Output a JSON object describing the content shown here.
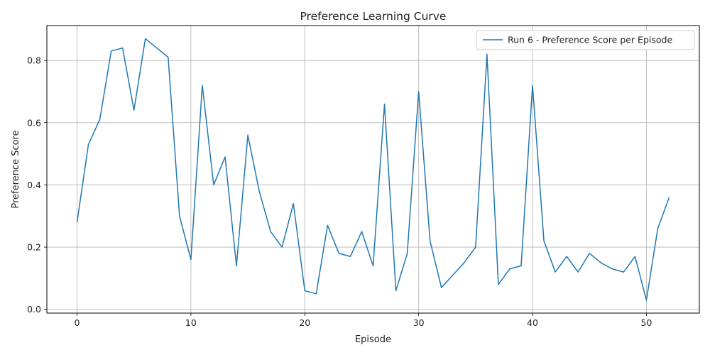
{
  "chart_data": {
    "type": "line",
    "title": "Preference Learning Curve",
    "xlabel": "Episode",
    "ylabel": "Preference Score",
    "xlim": [
      -2.65,
      54.65
    ],
    "ylim": [
      -0.012,
      0.912
    ],
    "xticks": [
      0,
      10,
      20,
      30,
      40,
      50
    ],
    "yticks": [
      0.0,
      0.2,
      0.4,
      0.6,
      0.8
    ],
    "ytick_labels": [
      "0.0",
      "0.2",
      "0.4",
      "0.6",
      "0.8"
    ],
    "grid": true,
    "legend_position": "top-right",
    "series": [
      {
        "name": "Run 6 - Preference Score per Episode",
        "color": "#1f77b4",
        "x": [
          0,
          1,
          2,
          3,
          4,
          5,
          6,
          7,
          8,
          9,
          10,
          11,
          12,
          13,
          14,
          15,
          16,
          17,
          18,
          19,
          20,
          21,
          22,
          23,
          24,
          25,
          26,
          27,
          28,
          29,
          30,
          31,
          32,
          33,
          34,
          35,
          36,
          37,
          38,
          39,
          40,
          41,
          42,
          43,
          44,
          45,
          46,
          47,
          48,
          49,
          50,
          51,
          52
        ],
        "values": [
          0.28,
          0.53,
          0.61,
          0.83,
          0.84,
          0.64,
          0.87,
          0.84,
          0.81,
          0.3,
          0.16,
          0.72,
          0.4,
          0.49,
          0.14,
          0.56,
          0.38,
          0.25,
          0.2,
          0.34,
          0.06,
          0.05,
          0.27,
          0.18,
          0.17,
          0.25,
          0.14,
          0.66,
          0.06,
          0.18,
          0.7,
          0.22,
          0.07,
          0.11,
          0.15,
          0.2,
          0.82,
          0.08,
          0.13,
          0.14,
          0.72,
          0.22,
          0.12,
          0.17,
          0.12,
          0.18,
          0.15,
          0.13,
          0.12,
          0.17,
          0.03,
          0.26,
          0.36
        ]
      }
    ]
  }
}
